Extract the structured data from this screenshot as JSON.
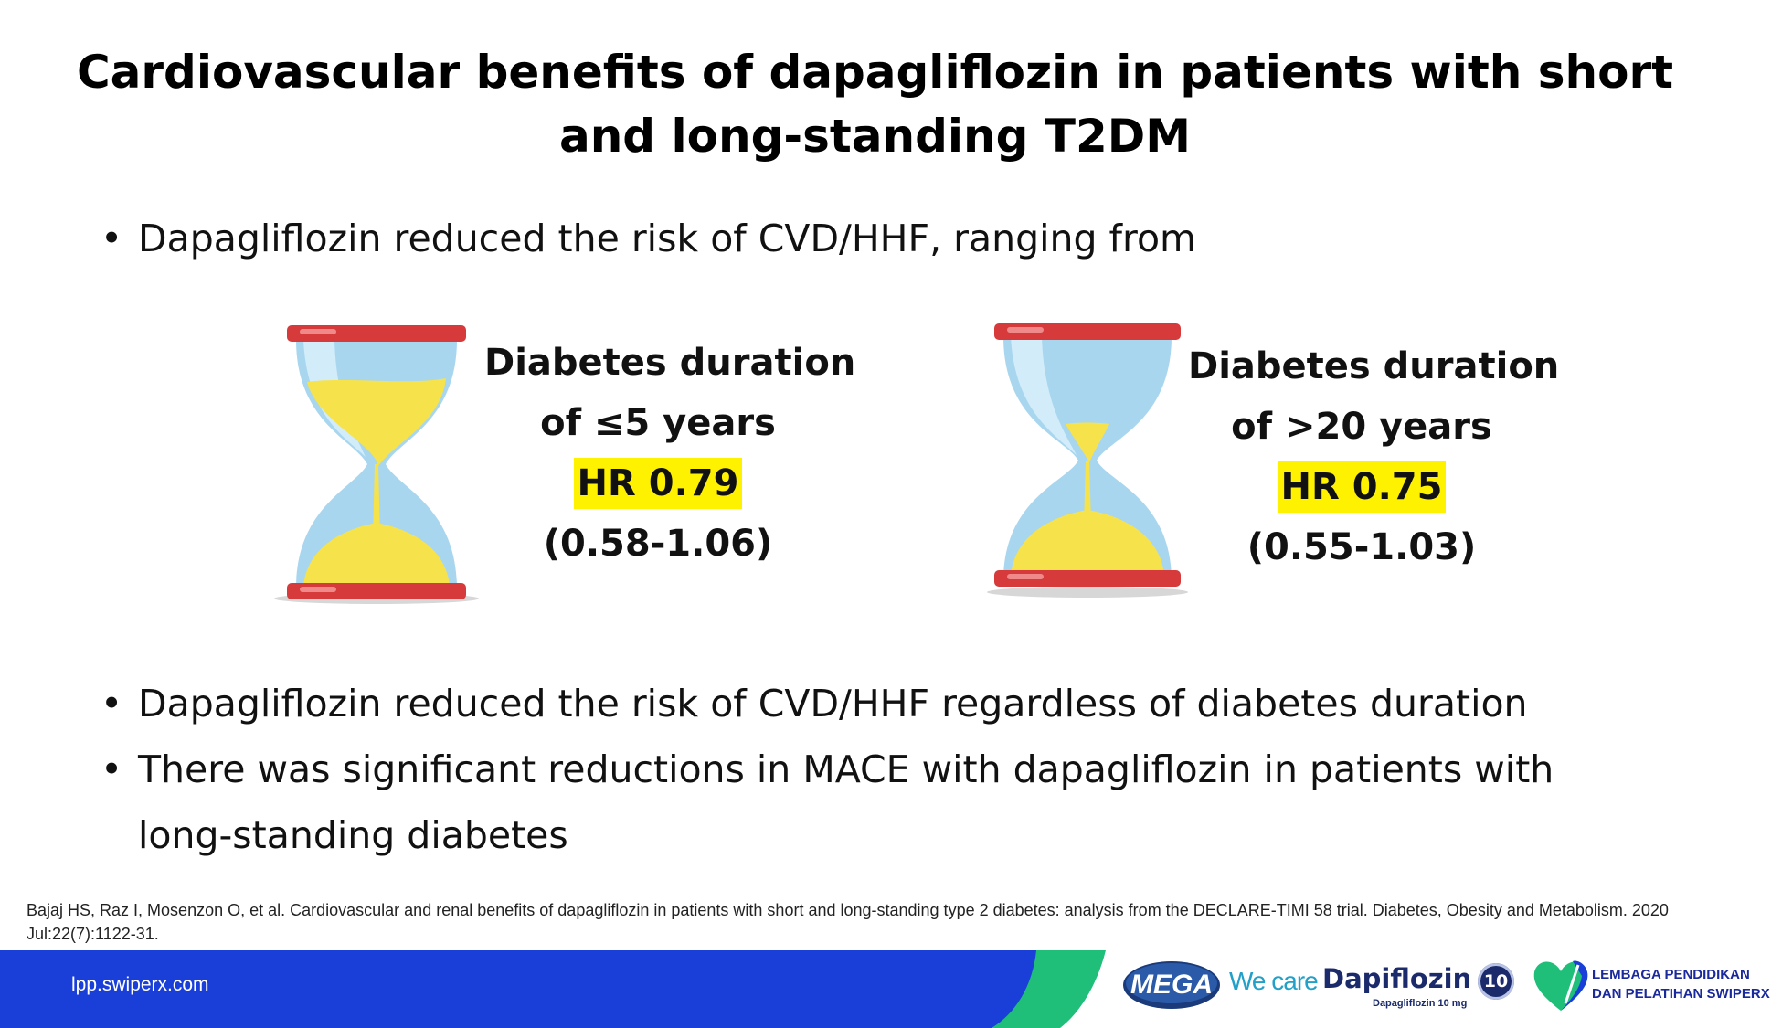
{
  "title": {
    "line1": "Cardiovascular benefits of dapagliflozin in patients with short",
    "line2": "and long-standing T2DM"
  },
  "bullets": {
    "intro": "Dapagliflozin reduced the risk of CVD/HHF, ranging from",
    "point1": "Dapagliflozin reduced the risk of CVD/HHF regardless of diabetes duration",
    "point2_line1": "There was significant reductions in MACE with dapagliflozin in patients with",
    "point2_line2": "long-standing diabetes"
  },
  "groups": [
    {
      "line1": "Diabetes duration",
      "line2": "of ≤5 years",
      "hr": "HR 0.79",
      "ci": "(0.58-1.06)",
      "sand_level": 0.45
    },
    {
      "line1": "Diabetes duration",
      "line2": "of >20 years",
      "hr": "HR 0.75",
      "ci": "(0.55-1.03)",
      "sand_level": 0.25
    }
  ],
  "reference": "Bajaj HS, Raz I, Mosenzon O, et al. Cardiovascular and renal benefits of dapagliflozin in patients with short and long-standing type 2 diabetes: analysis from the DECLARE-TIMI 58 trial. Diabetes, Obesity and Metabolism. 2020 Jul:22(7):1122-31.",
  "footer": {
    "url": "lpp.swiperx.com",
    "mega": "MEGA",
    "we_care": "We care",
    "brand": "Dapiflozin",
    "brand_sub": "Dapagliflozin 10 mg",
    "badge": "10",
    "org_line1": "LEMBAGA PENDIDIKAN",
    "org_line2": "DAN PELATIHAN SWIPERX"
  },
  "colors": {
    "highlight": "#fff200",
    "footer_blue": "#1a3fd8",
    "footer_green": "#1fbf7a",
    "hourglass_red": "#d63a3a",
    "glass_blue": "#a9d6ef",
    "sand_yellow": "#f6e24a"
  }
}
